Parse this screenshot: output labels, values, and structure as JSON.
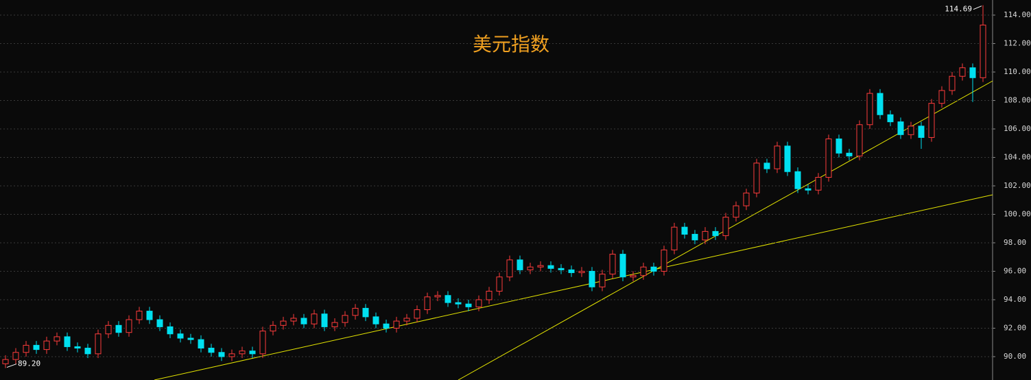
{
  "chart_data": {
    "type": "candlestick",
    "title": "美元指数",
    "up_color": "#ff3c3c",
    "down_color": "#00e0f0",
    "grid": true,
    "ylim": [
      88.36,
      115.06
    ],
    "yticks": [
      {
        "value": 90,
        "label": "90.00"
      },
      {
        "value": 92,
        "label": "92.00"
      },
      {
        "value": 94,
        "label": "94.00"
      },
      {
        "value": 96,
        "label": "96.00"
      },
      {
        "value": 98,
        "label": "98.00"
      },
      {
        "value": 100,
        "label": "100.00"
      },
      {
        "value": 102,
        "label": "102.00"
      },
      {
        "value": 104,
        "label": "104.00"
      },
      {
        "value": 106,
        "label": "106.00"
      },
      {
        "value": 108,
        "label": "108.00"
      },
      {
        "value": 110,
        "label": "110.00"
      },
      {
        "value": 112,
        "label": "112.00"
      },
      {
        "value": 114,
        "label": "114.00"
      }
    ],
    "open": [
      89.5,
      89.8,
      90.3,
      90.8,
      90.5,
      91.1,
      91.4,
      90.7,
      90.6,
      90.2,
      91.6,
      92.2,
      91.7,
      92.6,
      93.2,
      92.6,
      92.1,
      91.6,
      91.3,
      91.2,
      90.6,
      90.3,
      90.0,
      90.2,
      90.4,
      90.2,
      91.8,
      92.2,
      92.5,
      92.7,
      92.3,
      93.0,
      92.1,
      92.4,
      92.9,
      93.4,
      92.8,
      92.3,
      92.0,
      92.5,
      92.7,
      93.3,
      94.2,
      94.3,
      93.8,
      93.7,
      93.5,
      94.0,
      94.6,
      95.6,
      96.8,
      96.1,
      96.3,
      96.4,
      96.2,
      96.1,
      95.9,
      96.0,
      94.9,
      95.8,
      97.2,
      95.6,
      95.7,
      96.3,
      96.0,
      97.5,
      99.1,
      98.6,
      98.2,
      98.8,
      98.5,
      99.8,
      100.6,
      101.5,
      103.6,
      103.2,
      104.8,
      103.0,
      101.8,
      101.7,
      102.6,
      105.3,
      104.3,
      104.1,
      106.3,
      108.5,
      107.0,
      106.5,
      105.6,
      106.2,
      105.4,
      107.8,
      108.7,
      109.7,
      110.3,
      109.6
    ],
    "high": [
      90.1,
      90.6,
      91.1,
      91.1,
      91.4,
      91.7,
      91.7,
      91.0,
      90.9,
      91.9,
      92.5,
      92.5,
      92.9,
      93.5,
      93.5,
      92.9,
      92.4,
      91.9,
      91.6,
      91.5,
      90.9,
      90.6,
      90.5,
      90.7,
      90.7,
      92.1,
      92.5,
      92.8,
      93.0,
      93.0,
      93.3,
      93.3,
      92.7,
      93.2,
      93.7,
      93.7,
      93.1,
      92.6,
      92.8,
      93.0,
      93.6,
      94.5,
      94.6,
      94.6,
      94.1,
      94.0,
      94.3,
      94.9,
      95.9,
      97.1,
      97.1,
      96.6,
      96.7,
      96.7,
      96.5,
      96.4,
      96.3,
      96.3,
      96.1,
      97.5,
      97.5,
      96.0,
      96.6,
      96.6,
      97.8,
      99.4,
      99.4,
      98.9,
      99.1,
      99.1,
      100.1,
      100.9,
      101.8,
      103.9,
      103.9,
      105.1,
      105.1,
      103.3,
      102.1,
      102.9,
      105.6,
      105.6,
      104.6,
      106.6,
      108.8,
      108.8,
      107.3,
      106.8,
      106.5,
      106.5,
      108.1,
      109.0,
      110.0,
      110.6,
      110.6,
      114.69
    ],
    "low": [
      89.2,
      89.5,
      90.0,
      90.2,
      90.2,
      90.8,
      90.4,
      90.3,
      89.9,
      89.9,
      91.3,
      91.4,
      91.4,
      92.3,
      92.3,
      91.8,
      91.3,
      91.0,
      90.9,
      90.3,
      90.0,
      89.7,
      89.7,
      89.9,
      89.9,
      89.9,
      91.5,
      91.9,
      92.2,
      92.0,
      92.0,
      91.8,
      91.8,
      92.1,
      92.6,
      92.5,
      92.0,
      91.7,
      91.7,
      92.2,
      92.4,
      93.0,
      93.9,
      93.5,
      93.4,
      93.2,
      93.2,
      93.7,
      94.3,
      95.3,
      95.8,
      95.8,
      96.0,
      95.9,
      95.8,
      95.6,
      95.6,
      94.6,
      94.6,
      95.5,
      95.3,
      95.3,
      95.4,
      95.7,
      95.7,
      97.2,
      98.3,
      97.9,
      97.9,
      98.2,
      98.2,
      99.5,
      100.3,
      101.2,
      102.9,
      102.9,
      102.7,
      101.5,
      101.4,
      101.4,
      102.3,
      104.0,
      103.8,
      103.8,
      106.0,
      106.7,
      106.2,
      105.3,
      105.3,
      104.6,
      105.1,
      107.5,
      108.4,
      109.4,
      107.9,
      109.3
    ],
    "close": [
      89.8,
      90.3,
      90.8,
      90.5,
      91.1,
      91.4,
      90.7,
      90.6,
      90.2,
      91.6,
      92.2,
      91.7,
      92.6,
      93.2,
      92.6,
      92.1,
      91.6,
      91.3,
      91.2,
      90.6,
      90.3,
      90.0,
      90.2,
      90.4,
      90.2,
      91.8,
      92.2,
      92.5,
      92.7,
      92.3,
      93.0,
      92.1,
      92.4,
      92.9,
      93.4,
      92.8,
      92.3,
      92.0,
      92.5,
      92.7,
      93.3,
      94.2,
      94.3,
      93.8,
      93.7,
      93.5,
      94.0,
      94.6,
      95.6,
      96.8,
      96.1,
      96.3,
      96.4,
      96.2,
      96.1,
      95.9,
      96.0,
      94.9,
      95.8,
      97.2,
      95.6,
      95.7,
      96.3,
      96.0,
      97.5,
      99.1,
      98.6,
      98.2,
      98.8,
      98.5,
      99.8,
      100.6,
      101.5,
      103.6,
      103.2,
      104.8,
      103.0,
      101.8,
      101.7,
      102.6,
      105.3,
      104.3,
      104.1,
      106.3,
      108.5,
      107.0,
      106.5,
      105.6,
      106.2,
      105.4,
      107.8,
      108.7,
      109.7,
      110.3,
      109.6,
      113.3
    ],
    "max_label": "114.69",
    "min_label": "89.20"
  }
}
